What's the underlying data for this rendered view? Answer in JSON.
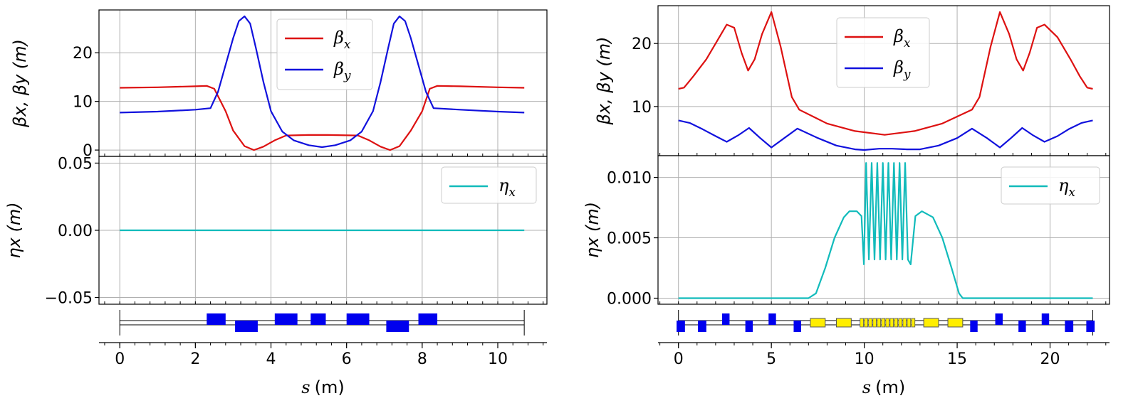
{
  "chart_data": [
    {
      "id": "left",
      "type": "line",
      "title": "",
      "xlabel": "s (m)",
      "xlabel_math": "s",
      "xlabel_unit": "(m)",
      "xlim": [
        -0.55,
        11.3
      ],
      "xticks": [
        0,
        2,
        4,
        6,
        8,
        10
      ],
      "xtick_labels": [
        "0",
        "2",
        "4",
        "6",
        "8",
        "10"
      ],
      "beta_panel": {
        "ylabel": "βx, βy (m)",
        "ylim": [
          -1.3,
          28.8
        ],
        "yticks": [
          0,
          10,
          20
        ],
        "ytick_labels": [
          "0",
          "10",
          "20"
        ],
        "legend_position": "upper-center",
        "series": [
          {
            "name": "βx",
            "base": "β",
            "sub": "x",
            "color": "#dd1111",
            "x": [
              0,
              1.0,
              2.0,
              2.3,
              2.5,
              2.8,
              3.0,
              3.3,
              3.55,
              3.8,
              4.1,
              4.4,
              5.0,
              5.5,
              6.3,
              6.6,
              6.9,
              7.15,
              7.4,
              7.7,
              8.0,
              8.2,
              8.4,
              9.0,
              10.0,
              10.7
            ],
            "y": [
              12.8,
              12.9,
              13.1,
              13.2,
              12.6,
              8.0,
              4.0,
              0.8,
              0.0,
              0.7,
              2.0,
              3.0,
              3.1,
              3.1,
              3.0,
              2.0,
              0.7,
              0.0,
              0.8,
              4.0,
              8.0,
              12.6,
              13.2,
              13.1,
              12.9,
              12.8
            ]
          },
          {
            "name": "βy",
            "base": "β",
            "sub": "y",
            "color": "#1111dd",
            "x": [
              0,
              1.0,
              2.0,
              2.4,
              2.6,
              2.8,
              3.0,
              3.15,
              3.3,
              3.45,
              3.6,
              3.8,
              4.0,
              4.3,
              4.6,
              5.0,
              5.35,
              5.7,
              6.1,
              6.4,
              6.7,
              6.9,
              7.1,
              7.25,
              7.4,
              7.55,
              7.7,
              7.9,
              8.1,
              8.3,
              9.0,
              10.0,
              10.7
            ],
            "y": [
              7.7,
              7.9,
              8.3,
              8.6,
              12.0,
              17.5,
              23.0,
              26.5,
              27.5,
              26.0,
              21.0,
              14.0,
              8.0,
              3.8,
              2.0,
              1.0,
              0.6,
              1.0,
              2.0,
              3.8,
              8.0,
              14.0,
              21.0,
              26.0,
              27.5,
              26.5,
              23.0,
              17.5,
              12.0,
              8.6,
              8.3,
              7.9,
              7.7
            ]
          }
        ]
      },
      "eta_panel": {
        "ylabel": "ηx (m)",
        "ylim": [
          -0.055,
          0.055
        ],
        "yticks": [
          -0.05,
          0.0,
          0.05
        ],
        "ytick_labels": [
          "−0.05",
          "0.00",
          "0.05"
        ],
        "legend_position": "upper-right",
        "series": [
          {
            "name": "ηx",
            "base": "η",
            "sub": "x",
            "color": "#11bbbb",
            "x": [
              0,
              10.7
            ],
            "y": [
              0.0,
              0.0
            ]
          }
        ]
      },
      "lattice": {
        "s_range": [
          0,
          10.7
        ],
        "elements": [
          {
            "type": "quad",
            "s_start": 2.3,
            "s_end": 2.8,
            "side": "up",
            "color": "#0000ee"
          },
          {
            "type": "quad",
            "s_start": 3.05,
            "s_end": 3.65,
            "side": "down",
            "color": "#0000ee"
          },
          {
            "type": "quad",
            "s_start": 4.1,
            "s_end": 4.7,
            "side": "up",
            "color": "#0000ee"
          },
          {
            "type": "quad",
            "s_start": 5.05,
            "s_end": 5.45,
            "side": "up",
            "color": "#0000ee"
          },
          {
            "type": "quad",
            "s_start": 6.0,
            "s_end": 6.6,
            "side": "up",
            "color": "#0000ee"
          },
          {
            "type": "quad",
            "s_start": 7.05,
            "s_end": 7.65,
            "side": "down",
            "color": "#0000ee"
          },
          {
            "type": "quad",
            "s_start": 7.9,
            "s_end": 8.4,
            "side": "up",
            "color": "#0000ee"
          }
        ]
      }
    },
    {
      "id": "right",
      "type": "line",
      "title": "",
      "xlabel": "s (m)",
      "xlabel_math": "s",
      "xlabel_unit": "(m)",
      "xlim": [
        -1.1,
        23.2
      ],
      "xticks": [
        0,
        5,
        10,
        15,
        20
      ],
      "xtick_labels": [
        "0",
        "5",
        "10",
        "15",
        "20"
      ],
      "beta_panel": {
        "ylabel": "βx, βy (m)",
        "ylim": [
          2.2,
          26.0
        ],
        "yticks": [
          10,
          20
        ],
        "ytick_labels": [
          "10",
          "20"
        ],
        "legend_position": "upper-center",
        "series": [
          {
            "name": "βx",
            "base": "β",
            "sub": "x",
            "color": "#dd1111",
            "x": [
              0,
              0.3,
              0.8,
              1.5,
              2.2,
              2.6,
              3.0,
              3.4,
              3.75,
              4.1,
              4.5,
              5.0,
              5.5,
              6.1,
              6.5,
              8.0,
              9.5,
              11.1,
              12.7,
              14.2,
              15.8,
              16.2,
              16.8,
              17.3,
              17.8,
              18.2,
              18.55,
              18.9,
              19.3,
              19.7,
              20.4,
              21.1,
              21.6,
              22.0,
              22.3
            ],
            "y": [
              12.8,
              13.0,
              14.8,
              17.5,
              21.0,
              23.0,
              22.5,
              18.5,
              15.7,
              17.5,
              21.5,
              25.0,
              19.5,
              11.5,
              9.5,
              7.3,
              6.1,
              5.5,
              6.1,
              7.3,
              9.5,
              11.5,
              19.5,
              25.0,
              21.5,
              17.5,
              15.7,
              18.5,
              22.5,
              23.0,
              21.0,
              17.5,
              14.8,
              13.0,
              12.8
            ]
          },
          {
            "name": "βy",
            "base": "β",
            "sub": "y",
            "color": "#1111dd",
            "x": [
              0,
              0.6,
              1.3,
              2.0,
              2.6,
              3.2,
              3.8,
              4.4,
              5.0,
              5.7,
              6.4,
              7.5,
              8.5,
              9.5,
              10.0,
              10.8,
              11.5,
              12.3,
              13.0,
              14.0,
              15.0,
              15.8,
              16.6,
              17.3,
              17.9,
              18.5,
              19.1,
              19.7,
              20.4,
              21.0,
              21.7,
              22.3
            ],
            "y": [
              7.8,
              7.4,
              6.4,
              5.3,
              4.4,
              5.4,
              6.6,
              5.0,
              3.5,
              5.0,
              6.5,
              5.0,
              3.8,
              3.2,
              3.1,
              3.3,
              3.3,
              3.2,
              3.2,
              3.8,
              5.0,
              6.5,
              5.0,
              3.5,
              5.0,
              6.6,
              5.4,
              4.4,
              5.3,
              6.4,
              7.4,
              7.8
            ]
          }
        ]
      },
      "eta_panel": {
        "ylabel": "ηx (m)",
        "ylim": [
          -0.0005,
          0.0118
        ],
        "yticks": [
          0.0,
          0.005,
          0.01
        ],
        "ytick_labels": [
          "0.000",
          "0.005",
          "0.010"
        ],
        "legend_position": "upper-right",
        "series": [
          {
            "name": "ηx",
            "base": "η",
            "sub": "x",
            "color": "#11bbbb",
            "x": [
              0,
              7.0,
              7.4,
              7.9,
              8.4,
              8.9,
              9.2,
              9.6,
              9.85,
              9.98,
              10.1,
              10.25,
              10.4,
              10.55,
              10.7,
              10.85,
              11.0,
              11.15,
              11.3,
              11.45,
              11.6,
              11.75,
              11.9,
              12.05,
              12.2,
              12.35,
              12.5,
              12.75,
              13.1,
              13.7,
              14.2,
              14.7,
              15.1,
              15.3,
              22.3
            ],
            "y": [
              0.0,
              0.0,
              0.0004,
              0.0025,
              0.005,
              0.0067,
              0.0072,
              0.0072,
              0.0068,
              0.0028,
              0.0112,
              0.0032,
              0.0112,
              0.0032,
              0.0112,
              0.0032,
              0.0112,
              0.0032,
              0.0112,
              0.0032,
              0.0112,
              0.0032,
              0.0112,
              0.0032,
              0.0112,
              0.0032,
              0.0028,
              0.0068,
              0.0072,
              0.0067,
              0.005,
              0.0025,
              0.0004,
              0.0,
              0.0
            ]
          }
        ]
      },
      "lattice": {
        "s_range": [
          0,
          22.3
        ],
        "elements": [
          {
            "type": "quad",
            "s_start": -0.1,
            "s_end": 0.35,
            "side": "down",
            "color": "#0000ee"
          },
          {
            "type": "quad",
            "s_start": 1.05,
            "s_end": 1.5,
            "side": "down",
            "color": "#0000ee"
          },
          {
            "type": "quad",
            "s_start": 2.35,
            "s_end": 2.75,
            "side": "up",
            "color": "#0000ee"
          },
          {
            "type": "quad",
            "s_start": 3.6,
            "s_end": 4.0,
            "side": "down",
            "color": "#0000ee"
          },
          {
            "type": "quad",
            "s_start": 4.85,
            "s_end": 5.25,
            "side": "up",
            "color": "#0000ee"
          },
          {
            "type": "quad",
            "s_start": 6.2,
            "s_end": 6.6,
            "side": "down",
            "color": "#0000ee"
          },
          {
            "type": "dipole",
            "s_start": 7.1,
            "s_end": 7.9,
            "side": "center",
            "color": "#ffee00"
          },
          {
            "type": "dipole",
            "s_start": 8.5,
            "s_end": 9.3,
            "side": "center",
            "color": "#ffee00"
          },
          {
            "type": "undulator",
            "s_start": 9.75,
            "s_end": 12.75,
            "side": "center",
            "color": "#ffee00",
            "periods": 13
          },
          {
            "type": "dipole",
            "s_start": 13.2,
            "s_end": 14.0,
            "side": "center",
            "color": "#ffee00"
          },
          {
            "type": "dipole",
            "s_start": 14.5,
            "s_end": 15.3,
            "side": "center",
            "color": "#ffee00"
          },
          {
            "type": "quad",
            "s_start": 15.7,
            "s_end": 16.1,
            "side": "down",
            "color": "#0000ee"
          },
          {
            "type": "quad",
            "s_start": 17.05,
            "s_end": 17.45,
            "side": "up",
            "color": "#0000ee"
          },
          {
            "type": "quad",
            "s_start": 18.3,
            "s_end": 18.7,
            "side": "down",
            "color": "#0000ee"
          },
          {
            "type": "quad",
            "s_start": 19.55,
            "s_end": 19.95,
            "side": "up",
            "color": "#0000ee"
          },
          {
            "type": "quad",
            "s_start": 20.8,
            "s_end": 21.25,
            "side": "down",
            "color": "#0000ee"
          },
          {
            "type": "quad",
            "s_start": 21.95,
            "s_end": 22.4,
            "side": "down",
            "color": "#0000ee"
          }
        ]
      }
    }
  ]
}
